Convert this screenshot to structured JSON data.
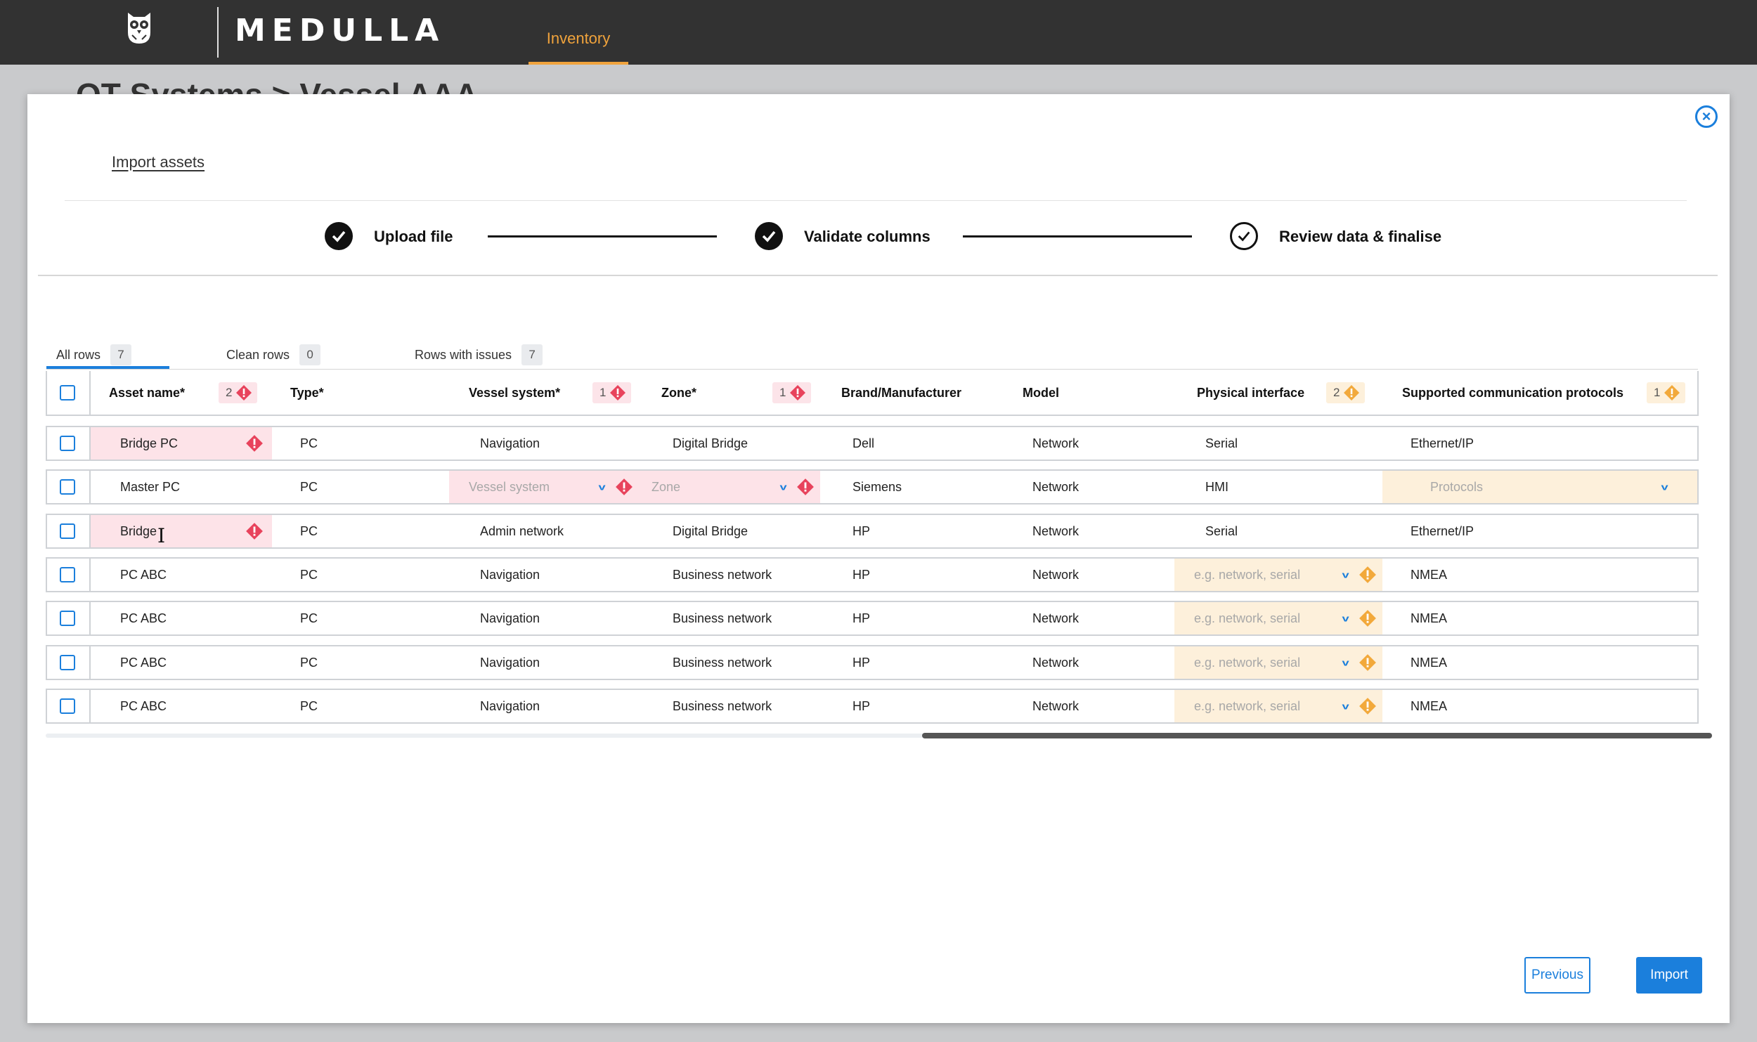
{
  "app": {
    "brand": "MEDULLA",
    "nav_tab": "Inventory"
  },
  "page": {
    "breadcrumb": "OT Systems > Vessel AAA"
  },
  "modal": {
    "title": "Import assets",
    "close_icon": "close-circle-icon",
    "steps": [
      {
        "label": "Upload file",
        "state": "done"
      },
      {
        "label": "Validate columns",
        "state": "done"
      },
      {
        "label": "Review data & finalise",
        "state": "current"
      }
    ],
    "filters": [
      {
        "label": "All rows",
        "count": "7",
        "active": true
      },
      {
        "label": "Clean rows",
        "count": "0",
        "active": false
      },
      {
        "label": "Rows with issues",
        "count": "7",
        "active": false
      }
    ],
    "columns": [
      {
        "label": "Asset name*",
        "issues": "2",
        "severity": "error"
      },
      {
        "label": "Type*",
        "issues": "",
        "severity": ""
      },
      {
        "label": "Vessel system*",
        "issues": "1",
        "severity": "error"
      },
      {
        "label": "Zone*",
        "issues": "1",
        "severity": "error"
      },
      {
        "label": "Brand/Manufacturer",
        "issues": "",
        "severity": ""
      },
      {
        "label": "Model",
        "issues": "",
        "severity": ""
      },
      {
        "label": "Physical interface",
        "issues": "2",
        "severity": "warning"
      },
      {
        "label": "Supported communication protocols",
        "issues": "1",
        "severity": "warning"
      }
    ],
    "rows": [
      {
        "asset": "Bridge PC",
        "type": "PC",
        "vessel": "Navigation",
        "zone": "Digital Bridge",
        "brand": "Dell",
        "model": "Network",
        "iface": "Serial",
        "proto": "Ethernet/IP"
      },
      {
        "asset": "Master PC",
        "type": "PC",
        "vessel": "",
        "zone": "",
        "brand": "Siemens",
        "model": "Network",
        "iface": "HMI",
        "proto": ""
      },
      {
        "asset": "Bridge",
        "type": "PC",
        "vessel": "Admin network",
        "zone": "Digital Bridge",
        "brand": "HP",
        "model": "Network",
        "iface": "Serial",
        "proto": "Ethernet/IP"
      },
      {
        "asset": "PC ABC",
        "type": "PC",
        "vessel": "Navigation",
        "zone": "Business network",
        "brand": "HP",
        "model": "Network",
        "iface": "",
        "proto": "NMEA"
      },
      {
        "asset": "PC ABC",
        "type": "PC",
        "vessel": "Navigation",
        "zone": "Business network",
        "brand": "HP",
        "model": "Network",
        "iface": "",
        "proto": "NMEA"
      },
      {
        "asset": "PC ABC",
        "type": "PC",
        "vessel": "Navigation",
        "zone": "Business network",
        "brand": "HP",
        "model": "Network",
        "iface": "",
        "proto": "NMEA"
      },
      {
        "asset": "PC ABC",
        "type": "PC",
        "vessel": "Navigation",
        "zone": "Business network",
        "brand": "HP",
        "model": "Network",
        "iface": "",
        "proto": "NMEA"
      }
    ],
    "placeholders": {
      "vessel": "Vessel system",
      "zone": "Zone",
      "iface": "e.g. network, serial",
      "proto": "Protocols"
    },
    "buttons": {
      "previous": "Previous",
      "import": "Import"
    }
  },
  "colors": {
    "accent": "#1b7fdc",
    "nav_accent": "#f0a33c",
    "error": "#e8435c",
    "warning": "#f2a93b"
  }
}
